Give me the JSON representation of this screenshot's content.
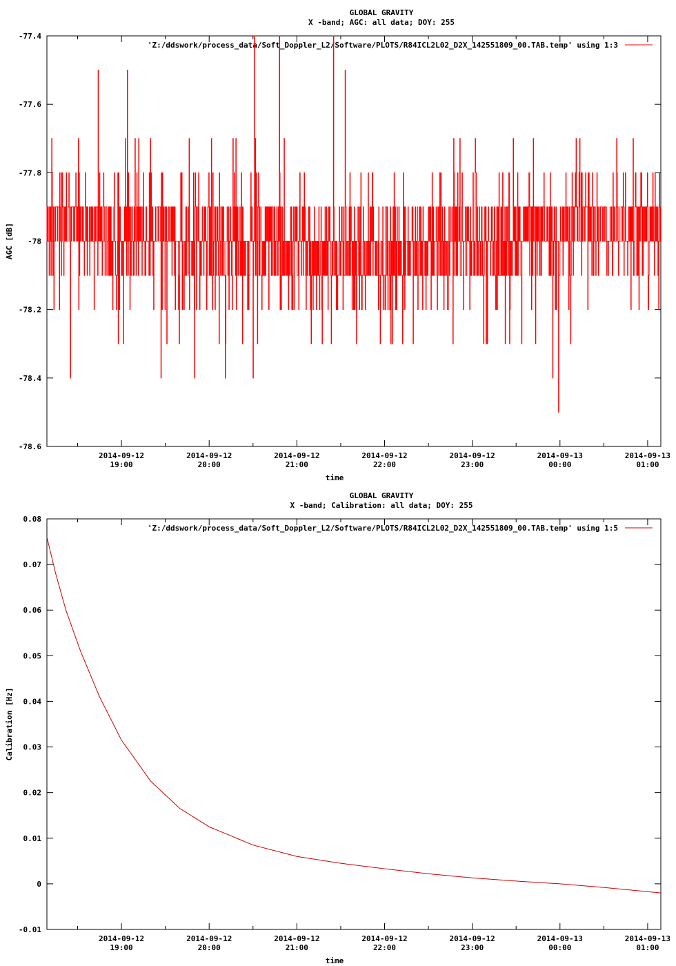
{
  "chart_data": [
    {
      "type": "line",
      "title": "GLOBAL GRAVITY",
      "subtitle": "X -band; AGC: all data; DOY: 255",
      "xlabel": "time",
      "ylabel": "AGC [dB]",
      "legend": "'Z:/ddswork/process_data/Soft_Doppler_L2/Software/PLOTS/R84ICL2L02_D2X_142551809_00.TAB.temp' using 1:3",
      "legend_position": "top-right",
      "grid": false,
      "series_color": "#ff0000",
      "ylim": [
        -78.6,
        -77.4
      ],
      "yticks": [
        -77.4,
        -77.6,
        -77.8,
        -78,
        -78.2,
        -78.4,
        -78.6
      ],
      "ytick_labels": [
        "-77.4",
        "-77.6",
        "-77.8",
        "-78",
        "-78.2",
        "-78.4",
        "-78.6"
      ],
      "xlim": [
        "2014-09-12 18:09",
        "2014-09-13 01:09"
      ],
      "xticks": [
        "2014-09-12 19:00",
        "2014-09-12 20:00",
        "2014-09-12 21:00",
        "2014-09-12 22:00",
        "2014-09-12 23:00",
        "2014-09-13 00:00",
        "2014-09-13 01:00"
      ],
      "xtick_dates": [
        "2014-09-12",
        "2014-09-12",
        "2014-09-12",
        "2014-09-12",
        "2014-09-12",
        "2014-09-13",
        "2014-09-13"
      ],
      "xtick_times": [
        "19:00",
        "20:00",
        "21:00",
        "22:00",
        "23:00",
        "00:00",
        "01:00"
      ],
      "data_summary": {
        "min": -78.5,
        "max": -77.4,
        "typical_range": [
          -78.1,
          -77.8
        ],
        "quantization": 0.1
      },
      "spikes": [
        {
          "t": "2014-09-12 20:31",
          "y": -77.4
        },
        {
          "t": "2014-09-12 20:48",
          "y": -77.4
        },
        {
          "t": "2014-09-12 21:25",
          "y": -77.4
        },
        {
          "t": "2014-09-12 18:44",
          "y": -77.5
        },
        {
          "t": "2014-09-12 19:04",
          "y": -77.5
        },
        {
          "t": "2014-09-12 21:33",
          "y": -77.5
        },
        {
          "t": "2014-09-12 23:59",
          "y": -78.5
        },
        {
          "t": "2014-09-12 18:25",
          "y": -78.4
        },
        {
          "t": "2014-09-12 19:27",
          "y": -78.4
        },
        {
          "t": "2014-09-12 19:50",
          "y": -78.4
        },
        {
          "t": "2014-09-12 20:11",
          "y": -78.4
        },
        {
          "t": "2014-09-12 20:30",
          "y": -78.4
        },
        {
          "t": "2014-09-12 23:55",
          "y": -78.4
        }
      ]
    },
    {
      "type": "line",
      "title": "GLOBAL GRAVITY",
      "subtitle": "X -band; Calibration: all data; DOY: 255",
      "xlabel": "time",
      "ylabel": "Calibration [Hz]",
      "legend": "'Z:/ddswork/process_data/Soft_Doppler_L2/Software/PLOTS/R84ICL2L02_D2X_142551809_00.TAB.temp' using 1:5",
      "legend_position": "top-right",
      "grid": false,
      "series_color": "#cc0000",
      "ylim": [
        -0.01,
        0.08
      ],
      "yticks": [
        0.08,
        0.07,
        0.06,
        0.05,
        0.04,
        0.03,
        0.02,
        0.01,
        0,
        -0.01
      ],
      "ytick_labels": [
        "0.08",
        "0.07",
        "0.06",
        "0.05",
        "0.04",
        "0.03",
        "0.02",
        "0.01",
        "0",
        "-0.01"
      ],
      "xlim": [
        "2014-09-12 18:09",
        "2014-09-13 01:09"
      ],
      "xticks": [
        "2014-09-12 19:00",
        "2014-09-12 20:00",
        "2014-09-12 21:00",
        "2014-09-12 22:00",
        "2014-09-12 23:00",
        "2014-09-13 00:00",
        "2014-09-13 01:00"
      ],
      "xtick_dates": [
        "2014-09-12",
        "2014-09-12",
        "2014-09-12",
        "2014-09-12",
        "2014-09-12",
        "2014-09-13",
        "2014-09-13"
      ],
      "xtick_times": [
        "19:00",
        "20:00",
        "21:00",
        "22:00",
        "23:00",
        "00:00",
        "01:00"
      ],
      "x": [
        "2014-09-12 18:09",
        "2014-09-12 18:15",
        "2014-09-12 18:22",
        "2014-09-12 18:32",
        "2014-09-12 18:45",
        "2014-09-12 19:00",
        "2014-09-12 19:20",
        "2014-09-12 19:40",
        "2014-09-12 20:00",
        "2014-09-12 20:30",
        "2014-09-12 21:00",
        "2014-09-12 21:30",
        "2014-09-12 22:00",
        "2014-09-12 22:30",
        "2014-09-12 23:00",
        "2014-09-12 23:30",
        "2014-09-13 00:00",
        "2014-09-13 00:30",
        "2014-09-13 01:09"
      ],
      "values": [
        0.076,
        0.068,
        0.06,
        0.051,
        0.041,
        0.0315,
        0.0225,
        0.0165,
        0.0125,
        0.0085,
        0.006,
        0.0045,
        0.0033,
        0.0022,
        0.0013,
        0.0006,
        0.0,
        -0.0008,
        -0.002
      ]
    }
  ]
}
